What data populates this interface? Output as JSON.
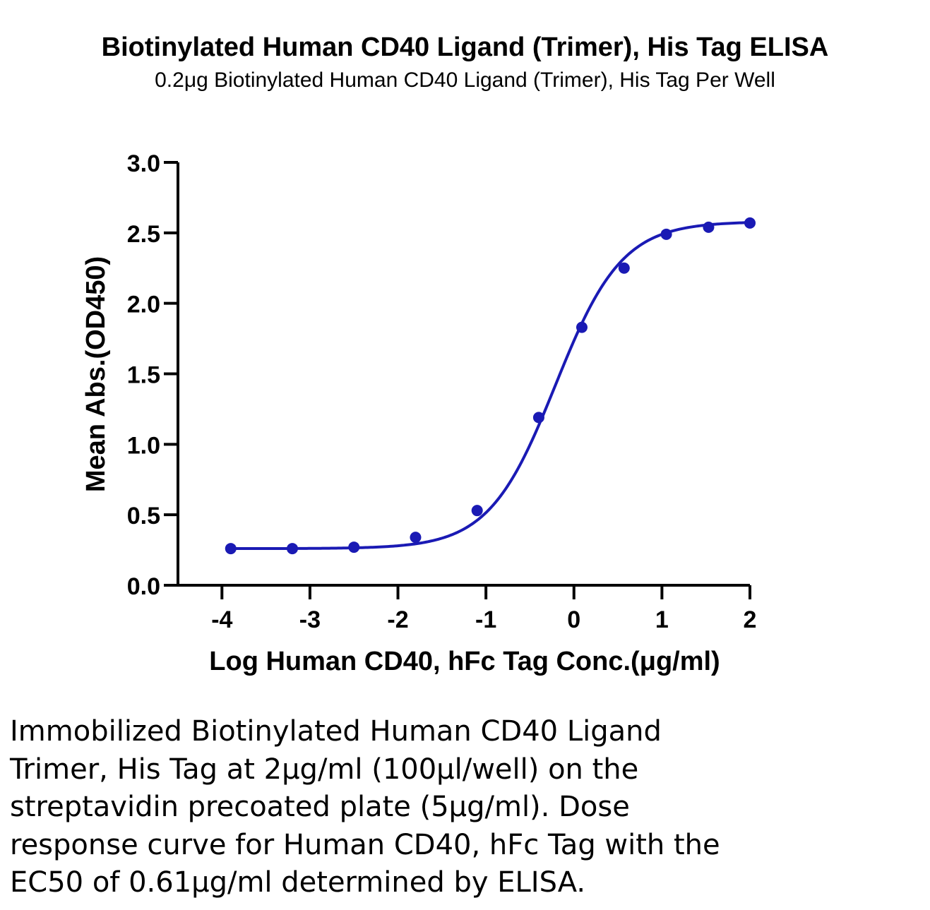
{
  "title": "Biotinylated Human CD40 Ligand (Trimer), His Tag ELISA",
  "subtitle": "0.2μg Biotinylated Human CD40 Ligand (Trimer), His Tag Per Well",
  "caption": "Immobilized Biotinylated Human CD40 Ligand\nTrimer, His Tag at 2μg/ml (100μl/well) on the\nstreptavidin precoated plate (5μg/ml). Dose\nresponse curve for Human CD40, hFc Tag with the\nEC50 of 0.61μg/ml determined by ELISA.",
  "chart_data": {
    "type": "scatter",
    "xlabel": "Log Human CD40, hFc Tag Conc.(μg/ml)",
    "ylabel": "Mean Abs.(OD450)",
    "xlim": [
      -4.5,
      2
    ],
    "ylim": [
      0,
      3.0
    ],
    "xticks": [
      "-4",
      "-3",
      "-2",
      "-1",
      "0",
      "1",
      "2"
    ],
    "xtick_values": [
      -4,
      -3,
      -2,
      -1,
      0,
      1,
      2
    ],
    "yticks": [
      "0.0",
      "0.5",
      "1.0",
      "1.5",
      "2.0",
      "2.5",
      "3.0"
    ],
    "ytick_values": [
      0,
      0.5,
      1.0,
      1.5,
      2.0,
      2.5,
      3.0
    ],
    "grid": false,
    "legend": "none",
    "series": [
      {
        "x": [
          -3.9,
          -3.2,
          -2.5,
          -1.8,
          -1.1,
          -0.4,
          0.09,
          0.57,
          1.05,
          1.53,
          2.0
        ],
        "y": [
          0.26,
          0.26,
          0.27,
          0.34,
          0.53,
          1.19,
          1.83,
          2.25,
          2.49,
          2.54,
          2.57
        ],
        "color": "#1a1ab4",
        "fit": "4PL sigmoidal curve",
        "fit_params": {
          "bottom": 0.26,
          "top": 2.58,
          "log_ec50": -0.21,
          "hill": 1.15
        }
      }
    ]
  }
}
